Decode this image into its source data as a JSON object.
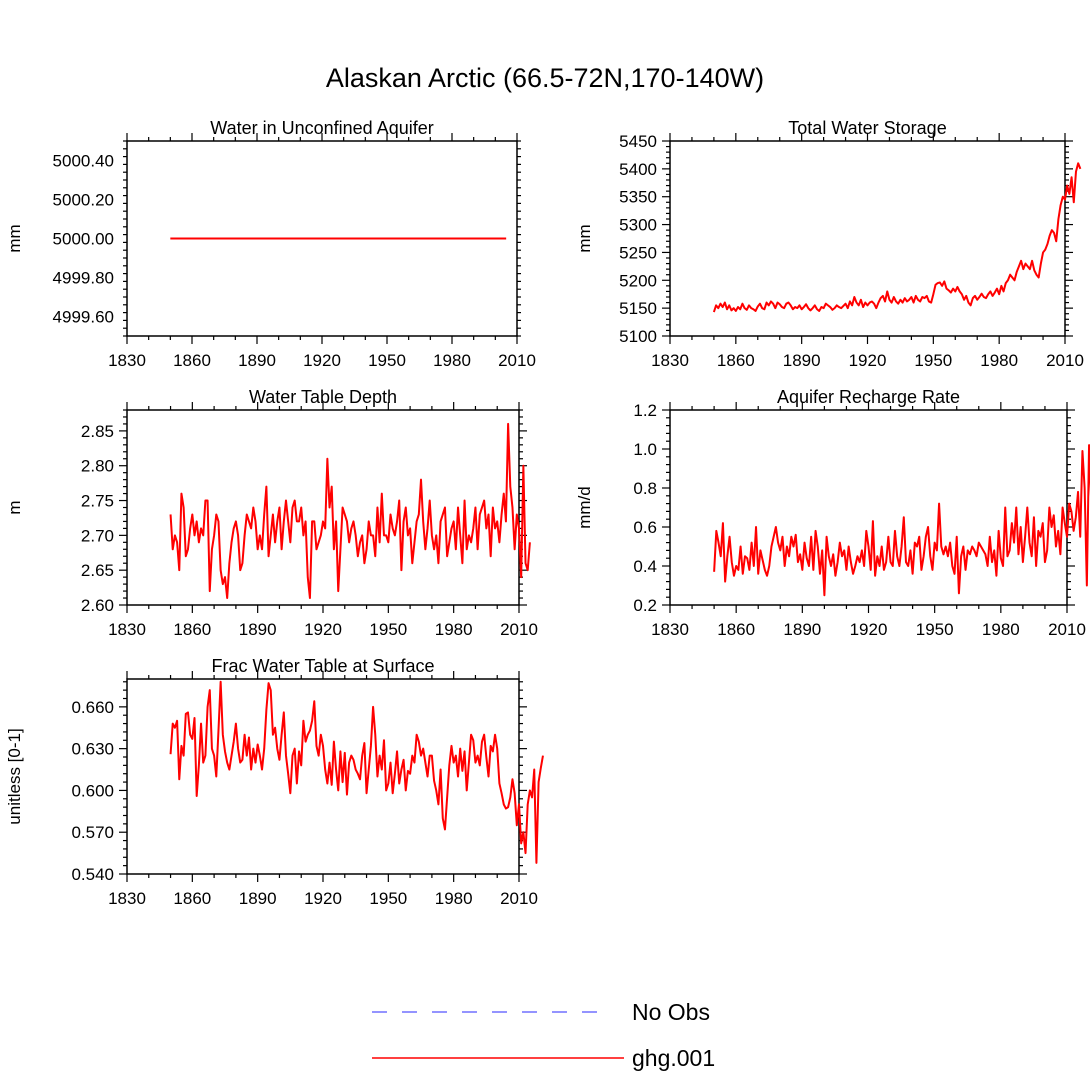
{
  "figure": {
    "title": "Alaskan Arctic (66.5-72N,170-140W)"
  },
  "colors": {
    "series": "#ff0000",
    "obs": "#7070ff",
    "axis": "#000000"
  },
  "legend": {
    "placement": "bottom-center",
    "items": [
      {
        "label": "No Obs",
        "style": "dashed",
        "color": "#7070ff"
      },
      {
        "label": "ghg.001",
        "style": "solid",
        "color": "#ff0000"
      }
    ]
  },
  "chart_data": [
    {
      "type": "line",
      "title": "Water in Unconfined Aquifer",
      "xlabel": "",
      "ylabel": "mm",
      "xlim": [
        1830,
        2010
      ],
      "ylim": [
        4999.5,
        5000.5
      ],
      "xticks": [
        1830,
        1860,
        1890,
        1920,
        1950,
        1980,
        2010
      ],
      "yticks": [
        4999.6,
        4999.8,
        5000.0,
        5000.2,
        5000.4
      ],
      "yticks_text": [
        "4999.60",
        "4999.80",
        "5000.00",
        "5000.20",
        "5000.40"
      ],
      "x_start": 1850,
      "series": [
        {
          "values": [
            5000,
            5000,
            5000,
            5000,
            5000,
            5000,
            5000,
            5000,
            5000,
            5000,
            5000,
            5000,
            5000,
            5000,
            5000,
            5000,
            5000,
            5000,
            5000,
            5000,
            5000,
            5000,
            5000,
            5000,
            5000,
            5000,
            5000,
            5000,
            5000,
            5000,
            5000,
            5000,
            5000,
            5000,
            5000,
            5000,
            5000,
            5000,
            5000,
            5000,
            5000,
            5000,
            5000,
            5000,
            5000,
            5000,
            5000,
            5000,
            5000,
            5000,
            5000,
            5000,
            5000,
            5000,
            5000,
            5000,
            5000,
            5000,
            5000,
            5000,
            5000,
            5000,
            5000,
            5000,
            5000,
            5000,
            5000,
            5000,
            5000,
            5000,
            5000,
            5000,
            5000,
            5000,
            5000,
            5000,
            5000,
            5000,
            5000,
            5000,
            5000,
            5000,
            5000,
            5000,
            5000,
            5000,
            5000,
            5000,
            5000,
            5000,
            5000,
            5000,
            5000,
            5000,
            5000,
            5000,
            5000,
            5000,
            5000,
            5000,
            5000,
            5000,
            5000,
            5000,
            5000,
            5000,
            5000,
            5000,
            5000,
            5000,
            5000,
            5000,
            5000,
            5000,
            5000,
            5000,
            5000,
            5000,
            5000,
            5000,
            5000,
            5000,
            5000,
            5000,
            5000,
            5000,
            5000,
            5000,
            5000,
            5000,
            5000,
            5000,
            5000,
            5000,
            5000,
            5000,
            5000,
            5000,
            5000,
            5000,
            5000,
            5000,
            5000,
            5000,
            5000,
            5000,
            5000,
            5000,
            5000,
            5000,
            5000,
            5000,
            5000,
            5000,
            5000,
            5000
          ]
        }
      ]
    },
    {
      "type": "line",
      "title": "Total Water Storage",
      "xlabel": "",
      "ylabel": "mm",
      "xlim": [
        1830,
        2010
      ],
      "ylim": [
        5100,
        5450
      ],
      "xticks": [
        1830,
        1860,
        1890,
        1920,
        1950,
        1980,
        2010
      ],
      "yticks": [
        5100,
        5150,
        5200,
        5250,
        5300,
        5350,
        5400,
        5450
      ],
      "yticks_text": [
        "5100",
        "5150",
        "5200",
        "5250",
        "5300",
        "5350",
        "5400",
        "5450"
      ],
      "x_start": 1850,
      "series": [
        {
          "values": [
            5143,
            5155,
            5150,
            5158,
            5152,
            5160,
            5148,
            5155,
            5146,
            5150,
            5145,
            5152,
            5148,
            5158,
            5150,
            5147,
            5155,
            5150,
            5148,
            5145,
            5153,
            5158,
            5150,
            5148,
            5160,
            5155,
            5162,
            5158,
            5150,
            5160,
            5157,
            5152,
            5150,
            5158,
            5160,
            5155,
            5148,
            5152,
            5150,
            5155,
            5148,
            5152,
            5157,
            5150,
            5146,
            5150,
            5155,
            5148,
            5145,
            5152,
            5150,
            5158,
            5155,
            5152,
            5147,
            5150,
            5155,
            5152,
            5150,
            5154,
            5158,
            5150,
            5162,
            5155,
            5170,
            5160,
            5155,
            5165,
            5152,
            5160,
            5155,
            5160,
            5162,
            5158,
            5150,
            5160,
            5168,
            5172,
            5162,
            5180,
            5165,
            5160,
            5170,
            5162,
            5158,
            5165,
            5160,
            5168,
            5162,
            5165,
            5170,
            5160,
            5172,
            5165,
            5162,
            5170,
            5168,
            5172,
            5162,
            5160,
            5175,
            5192,
            5195,
            5196,
            5190,
            5198,
            5185,
            5182,
            5178,
            5185,
            5180,
            5188,
            5180,
            5175,
            5165,
            5172,
            5160,
            5155,
            5168,
            5172,
            5165,
            5170,
            5176,
            5170,
            5168,
            5175,
            5180,
            5172,
            5178,
            5185,
            5175,
            5190,
            5180,
            5195,
            5200,
            5210,
            5205,
            5200,
            5215,
            5225,
            5235,
            5220,
            5230,
            5225,
            5220,
            5235,
            5218,
            5210,
            5205,
            5230,
            5250,
            5255,
            5265,
            5280,
            5290,
            5285,
            5270,
            5310,
            5335,
            5350,
            5345,
            5370,
            5355,
            5385,
            5340,
            5395,
            5410,
            5400
          ]
        }
      ]
    },
    {
      "type": "line",
      "title": "Water Table Depth",
      "xlabel": "",
      "ylabel": "m",
      "xlim": [
        1830,
        2010
      ],
      "ylim": [
        2.6,
        2.88
      ],
      "xticks": [
        1830,
        1860,
        1890,
        1920,
        1950,
        1980,
        2010
      ],
      "yticks": [
        2.6,
        2.65,
        2.7,
        2.75,
        2.8,
        2.85
      ],
      "yticks_text": [
        "2.60",
        "2.65",
        "2.70",
        "2.75",
        "2.80",
        "2.85"
      ],
      "x_start": 1850,
      "series": [
        {
          "values": [
            2.73,
            2.68,
            2.7,
            2.69,
            2.65,
            2.76,
            2.74,
            2.67,
            2.68,
            2.71,
            2.73,
            2.7,
            2.72,
            2.69,
            2.71,
            2.7,
            2.75,
            2.75,
            2.62,
            2.68,
            2.7,
            2.73,
            2.72,
            2.65,
            2.63,
            2.64,
            2.61,
            2.66,
            2.69,
            2.71,
            2.72,
            2.7,
            2.65,
            2.66,
            2.7,
            2.73,
            2.72,
            2.71,
            2.74,
            2.72,
            2.68,
            2.7,
            2.68,
            2.73,
            2.77,
            2.67,
            2.7,
            2.73,
            2.69,
            2.72,
            2.74,
            2.68,
            2.72,
            2.75,
            2.72,
            2.69,
            2.74,
            2.75,
            2.72,
            2.72,
            2.74,
            2.7,
            2.72,
            2.64,
            2.61,
            2.72,
            2.72,
            2.68,
            2.69,
            2.7,
            2.72,
            2.71,
            2.81,
            2.74,
            2.77,
            2.68,
            2.72,
            2.62,
            2.68,
            2.74,
            2.73,
            2.72,
            2.69,
            2.71,
            2.72,
            2.7,
            2.67,
            2.69,
            2.7,
            2.66,
            2.68,
            2.72,
            2.7,
            2.7,
            2.67,
            2.74,
            2.69,
            2.76,
            2.7,
            2.7,
            2.69,
            2.73,
            2.71,
            2.7,
            2.72,
            2.75,
            2.65,
            2.72,
            2.74,
            2.7,
            2.71,
            2.66,
            2.69,
            2.72,
            2.73,
            2.78,
            2.72,
            2.68,
            2.71,
            2.75,
            2.7,
            2.68,
            2.7,
            2.66,
            2.72,
            2.73,
            2.74,
            2.67,
            2.69,
            2.71,
            2.72,
            2.68,
            2.74,
            2.7,
            2.66,
            2.75,
            2.68,
            2.7,
            2.69,
            2.71,
            2.74,
            2.68,
            2.73,
            2.74,
            2.75,
            2.71,
            2.73,
            2.67,
            2.74,
            2.71,
            2.72,
            2.69,
            2.73,
            2.76,
            2.72,
            2.86,
            2.77,
            2.74,
            2.68,
            2.73,
            2.71,
            2.64,
            2.8,
            2.66,
            2.65,
            2.69
          ]
        }
      ]
    },
    {
      "type": "line",
      "title": "Aquifer Recharge Rate",
      "xlabel": "",
      "ylabel": "mm/d",
      "xlim": [
        1830,
        2010
      ],
      "ylim": [
        0.2,
        1.2
      ],
      "xticks": [
        1830,
        1860,
        1890,
        1920,
        1950,
        1980,
        2010
      ],
      "yticks": [
        0.2,
        0.4,
        0.6,
        0.8,
        1.0,
        1.2
      ],
      "yticks_text": [
        "0.2",
        "0.4",
        "0.6",
        "0.8",
        "1.0",
        "1.2"
      ],
      "x_start": 1850,
      "series": [
        {
          "values": [
            0.37,
            0.58,
            0.52,
            0.45,
            0.62,
            0.32,
            0.45,
            0.55,
            0.42,
            0.35,
            0.4,
            0.38,
            0.5,
            0.36,
            0.45,
            0.44,
            0.38,
            0.52,
            0.4,
            0.6,
            0.36,
            0.48,
            0.43,
            0.38,
            0.35,
            0.4,
            0.5,
            0.55,
            0.6,
            0.52,
            0.48,
            0.55,
            0.4,
            0.5,
            0.45,
            0.55,
            0.5,
            0.56,
            0.42,
            0.46,
            0.38,
            0.52,
            0.44,
            0.4,
            0.55,
            0.38,
            0.58,
            0.5,
            0.36,
            0.48,
            0.25,
            0.55,
            0.45,
            0.4,
            0.46,
            0.35,
            0.42,
            0.52,
            0.45,
            0.48,
            0.38,
            0.5,
            0.42,
            0.36,
            0.4,
            0.45,
            0.42,
            0.48,
            0.4,
            0.58,
            0.5,
            0.38,
            0.63,
            0.35,
            0.45,
            0.4,
            0.5,
            0.38,
            0.42,
            0.55,
            0.42,
            0.4,
            0.58,
            0.45,
            0.4,
            0.5,
            0.65,
            0.42,
            0.4,
            0.48,
            0.36,
            0.52,
            0.5,
            0.55,
            0.38,
            0.45,
            0.55,
            0.6,
            0.45,
            0.38,
            0.52,
            0.48,
            0.72,
            0.5,
            0.46,
            0.5,
            0.45,
            0.52,
            0.4,
            0.36,
            0.55,
            0.26,
            0.45,
            0.5,
            0.38,
            0.48,
            0.46,
            0.5,
            0.48,
            0.45,
            0.52,
            0.5,
            0.48,
            0.46,
            0.4,
            0.55,
            0.42,
            0.48,
            0.35,
            0.58,
            0.44,
            0.4,
            0.7,
            0.45,
            0.48,
            0.62,
            0.52,
            0.7,
            0.46,
            0.6,
            0.42,
            0.55,
            0.7,
            0.52,
            0.45,
            0.65,
            0.4,
            0.58,
            0.55,
            0.62,
            0.42,
            0.48,
            0.7,
            0.6,
            0.66,
            0.5,
            0.58,
            0.46,
            0.7,
            0.62,
            0.55,
            0.72,
            0.68,
            0.58,
            0.65,
            0.78,
            0.55,
            0.99,
            0.8,
            0.3,
            1.02,
            0.72,
            0.7
          ]
        }
      ]
    },
    {
      "type": "line",
      "title": "Frac Water Table at Surface",
      "xlabel": "",
      "ylabel": "unitless [0-1]",
      "xlim": [
        1830,
        2010
      ],
      "ylim": [
        0.54,
        0.68
      ],
      "xticks": [
        1830,
        1860,
        1890,
        1920,
        1950,
        1980,
        2010
      ],
      "yticks": [
        0.54,
        0.57,
        0.6,
        0.63,
        0.66
      ],
      "yticks_text": [
        "0.540",
        "0.570",
        "0.600",
        "0.630",
        "0.660"
      ],
      "x_start": 1850,
      "series": [
        {
          "values": [
            0.626,
            0.648,
            0.645,
            0.65,
            0.608,
            0.632,
            0.625,
            0.655,
            0.656,
            0.64,
            0.637,
            0.652,
            0.596,
            0.618,
            0.648,
            0.62,
            0.625,
            0.66,
            0.672,
            0.63,
            0.625,
            0.61,
            0.643,
            0.678,
            0.64,
            0.628,
            0.62,
            0.615,
            0.625,
            0.635,
            0.648,
            0.63,
            0.62,
            0.622,
            0.64,
            0.625,
            0.638,
            0.615,
            0.63,
            0.62,
            0.633,
            0.625,
            0.615,
            0.63,
            0.658,
            0.677,
            0.672,
            0.64,
            0.645,
            0.63,
            0.622,
            0.64,
            0.656,
            0.625,
            0.612,
            0.598,
            0.625,
            0.63,
            0.605,
            0.628,
            0.618,
            0.65,
            0.635,
            0.64,
            0.643,
            0.65,
            0.664,
            0.632,
            0.625,
            0.64,
            0.632,
            0.615,
            0.605,
            0.62,
            0.604,
            0.635,
            0.615,
            0.6,
            0.628,
            0.606,
            0.627,
            0.597,
            0.62,
            0.625,
            0.622,
            0.615,
            0.612,
            0.608,
            0.625,
            0.634,
            0.598,
            0.615,
            0.632,
            0.66,
            0.64,
            0.61,
            0.625,
            0.615,
            0.636,
            0.6,
            0.605,
            0.62,
            0.598,
            0.612,
            0.628,
            0.605,
            0.615,
            0.622,
            0.6,
            0.614,
            0.612,
            0.625,
            0.62,
            0.64,
            0.635,
            0.625,
            0.63,
            0.62,
            0.61,
            0.625,
            0.625,
            0.607,
            0.6,
            0.59,
            0.615,
            0.58,
            0.572,
            0.595,
            0.618,
            0.632,
            0.62,
            0.625,
            0.61,
            0.63,
            0.614,
            0.628,
            0.6,
            0.62,
            0.64,
            0.636,
            0.62,
            0.625,
            0.618,
            0.635,
            0.64,
            0.624,
            0.61,
            0.632,
            0.628,
            0.64,
            0.63,
            0.605,
            0.598,
            0.59,
            0.587,
            0.588,
            0.595,
            0.608,
            0.598,
            0.575,
            0.59,
            0.562,
            0.57,
            0.555,
            0.59,
            0.6,
            0.595,
            0.615,
            0.548,
            0.606,
            0.616,
            0.625
          ]
        }
      ]
    }
  ]
}
